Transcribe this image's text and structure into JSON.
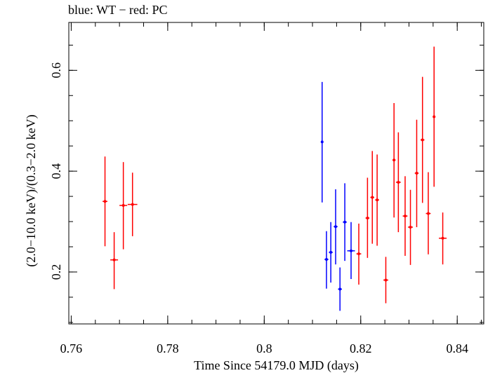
{
  "chart_data": {
    "type": "scatter",
    "title": "blue: WT − red: PC",
    "xlabel": "Time Since 54179.0 MJD (days)",
    "ylabel": "(2.0−10.0 keV)/(0.3−2.0 keV)",
    "xlim": [
      0.7595,
      0.8455
    ],
    "ylim": [
      0.097,
      0.695
    ],
    "xticks": [
      0.76,
      0.78,
      0.8,
      0.82,
      0.84
    ],
    "xtick_labels": [
      "0.76",
      "0.78",
      "0.8",
      "0.82",
      "0.84"
    ],
    "yticks": [
      0.2,
      0.4,
      0.6
    ],
    "ytick_labels": [
      "0.2",
      "0.4",
      "0.6"
    ],
    "grid": false,
    "series": [
      {
        "color": "#0000ff",
        "points": [
          {
            "x": 0.812,
            "y": 0.458,
            "xerr": 0.0002,
            "ylo": 0.338,
            "yhi": 0.577
          },
          {
            "x": 0.8129,
            "y": 0.225,
            "xerr": 0.0004,
            "ylo": 0.167,
            "yhi": 0.281
          },
          {
            "x": 0.8138,
            "y": 0.239,
            "xerr": 0.0004,
            "ylo": 0.179,
            "yhi": 0.299
          },
          {
            "x": 0.8148,
            "y": 0.29,
            "xerr": 0.0004,
            "ylo": 0.215,
            "yhi": 0.364
          },
          {
            "x": 0.8157,
            "y": 0.166,
            "xerr": 0.0004,
            "ylo": 0.123,
            "yhi": 0.209
          },
          {
            "x": 0.8167,
            "y": 0.299,
            "xerr": 0.0004,
            "ylo": 0.222,
            "yhi": 0.376
          },
          {
            "x": 0.818,
            "y": 0.242,
            "xerr": 0.0008,
            "ylo": 0.186,
            "yhi": 0.299
          }
        ]
      },
      {
        "color": "#ff0000",
        "points": [
          {
            "x": 0.767,
            "y": 0.34,
            "xerr": 0.0005,
            "ylo": 0.251,
            "yhi": 0.429
          },
          {
            "x": 0.7689,
            "y": 0.224,
            "xerr": 0.0008,
            "ylo": 0.166,
            "yhi": 0.279
          },
          {
            "x": 0.7708,
            "y": 0.332,
            "xerr": 0.0008,
            "ylo": 0.245,
            "yhi": 0.418
          },
          {
            "x": 0.7727,
            "y": 0.334,
            "xerr": 0.001,
            "ylo": 0.271,
            "yhi": 0.397
          },
          {
            "x": 0.8196,
            "y": 0.236,
            "xerr": 0.0005,
            "ylo": 0.175,
            "yhi": 0.296
          },
          {
            "x": 0.8214,
            "y": 0.307,
            "xerr": 0.0004,
            "ylo": 0.228,
            "yhi": 0.387
          },
          {
            "x": 0.8224,
            "y": 0.348,
            "xerr": 0.0004,
            "ylo": 0.256,
            "yhi": 0.44
          },
          {
            "x": 0.8234,
            "y": 0.343,
            "xerr": 0.0004,
            "ylo": 0.252,
            "yhi": 0.433
          },
          {
            "x": 0.8252,
            "y": 0.184,
            "xerr": 0.0005,
            "ylo": 0.138,
            "yhi": 0.23
          },
          {
            "x": 0.8269,
            "y": 0.422,
            "xerr": 0.0003,
            "ylo": 0.308,
            "yhi": 0.535
          },
          {
            "x": 0.8278,
            "y": 0.378,
            "xerr": 0.0005,
            "ylo": 0.279,
            "yhi": 0.477
          },
          {
            "x": 0.8292,
            "y": 0.311,
            "xerr": 0.0005,
            "ylo": 0.232,
            "yhi": 0.39
          },
          {
            "x": 0.8303,
            "y": 0.289,
            "xerr": 0.0005,
            "ylo": 0.214,
            "yhi": 0.363
          },
          {
            "x": 0.8316,
            "y": 0.396,
            "xerr": 0.0004,
            "ylo": 0.289,
            "yhi": 0.502
          },
          {
            "x": 0.8328,
            "y": 0.462,
            "xerr": 0.0004,
            "ylo": 0.337,
            "yhi": 0.587
          },
          {
            "x": 0.834,
            "y": 0.316,
            "xerr": 0.0005,
            "ylo": 0.235,
            "yhi": 0.398
          },
          {
            "x": 0.8352,
            "y": 0.508,
            "xerr": 0.0002,
            "ylo": 0.369,
            "yhi": 0.647
          },
          {
            "x": 0.837,
            "y": 0.267,
            "xerr": 0.0008,
            "ylo": 0.215,
            "yhi": 0.318
          }
        ]
      }
    ]
  }
}
